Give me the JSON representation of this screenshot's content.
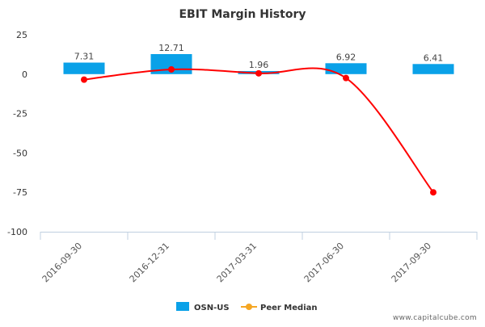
{
  "chart_data": {
    "type": "bar",
    "title": "EBIT Margin History",
    "categories": [
      "2016-09-30",
      "2016-12-31",
      "2017-03-31",
      "2017-06-30",
      "2017-09-30"
    ],
    "series": [
      {
        "name": "OSN-US",
        "type": "bar",
        "values": [
          7.31,
          12.71,
          1.96,
          6.92,
          6.41
        ],
        "color": "#0aa1e8"
      },
      {
        "name": "Peer Median",
        "type": "line",
        "values": [
          -3.5,
          3,
          0.5,
          -2.5,
          -75
        ],
        "color": "#f5a623"
      }
    ],
    "data_labels": [
      "7.31",
      "12.71",
      "1.96",
      "6.92",
      "6.41"
    ],
    "below_median_color": "#ff0000",
    "yticks": [
      "25",
      "0",
      "-25",
      "-50",
      "-75",
      "-100"
    ],
    "ytick_values": [
      25,
      0,
      -25,
      -50,
      -75,
      -100
    ],
    "ylim": [
      -100,
      25
    ],
    "xlabel": "",
    "ylabel": "",
    "legend_position": "bottom-center"
  },
  "watermark": "www.capitalcube.com"
}
